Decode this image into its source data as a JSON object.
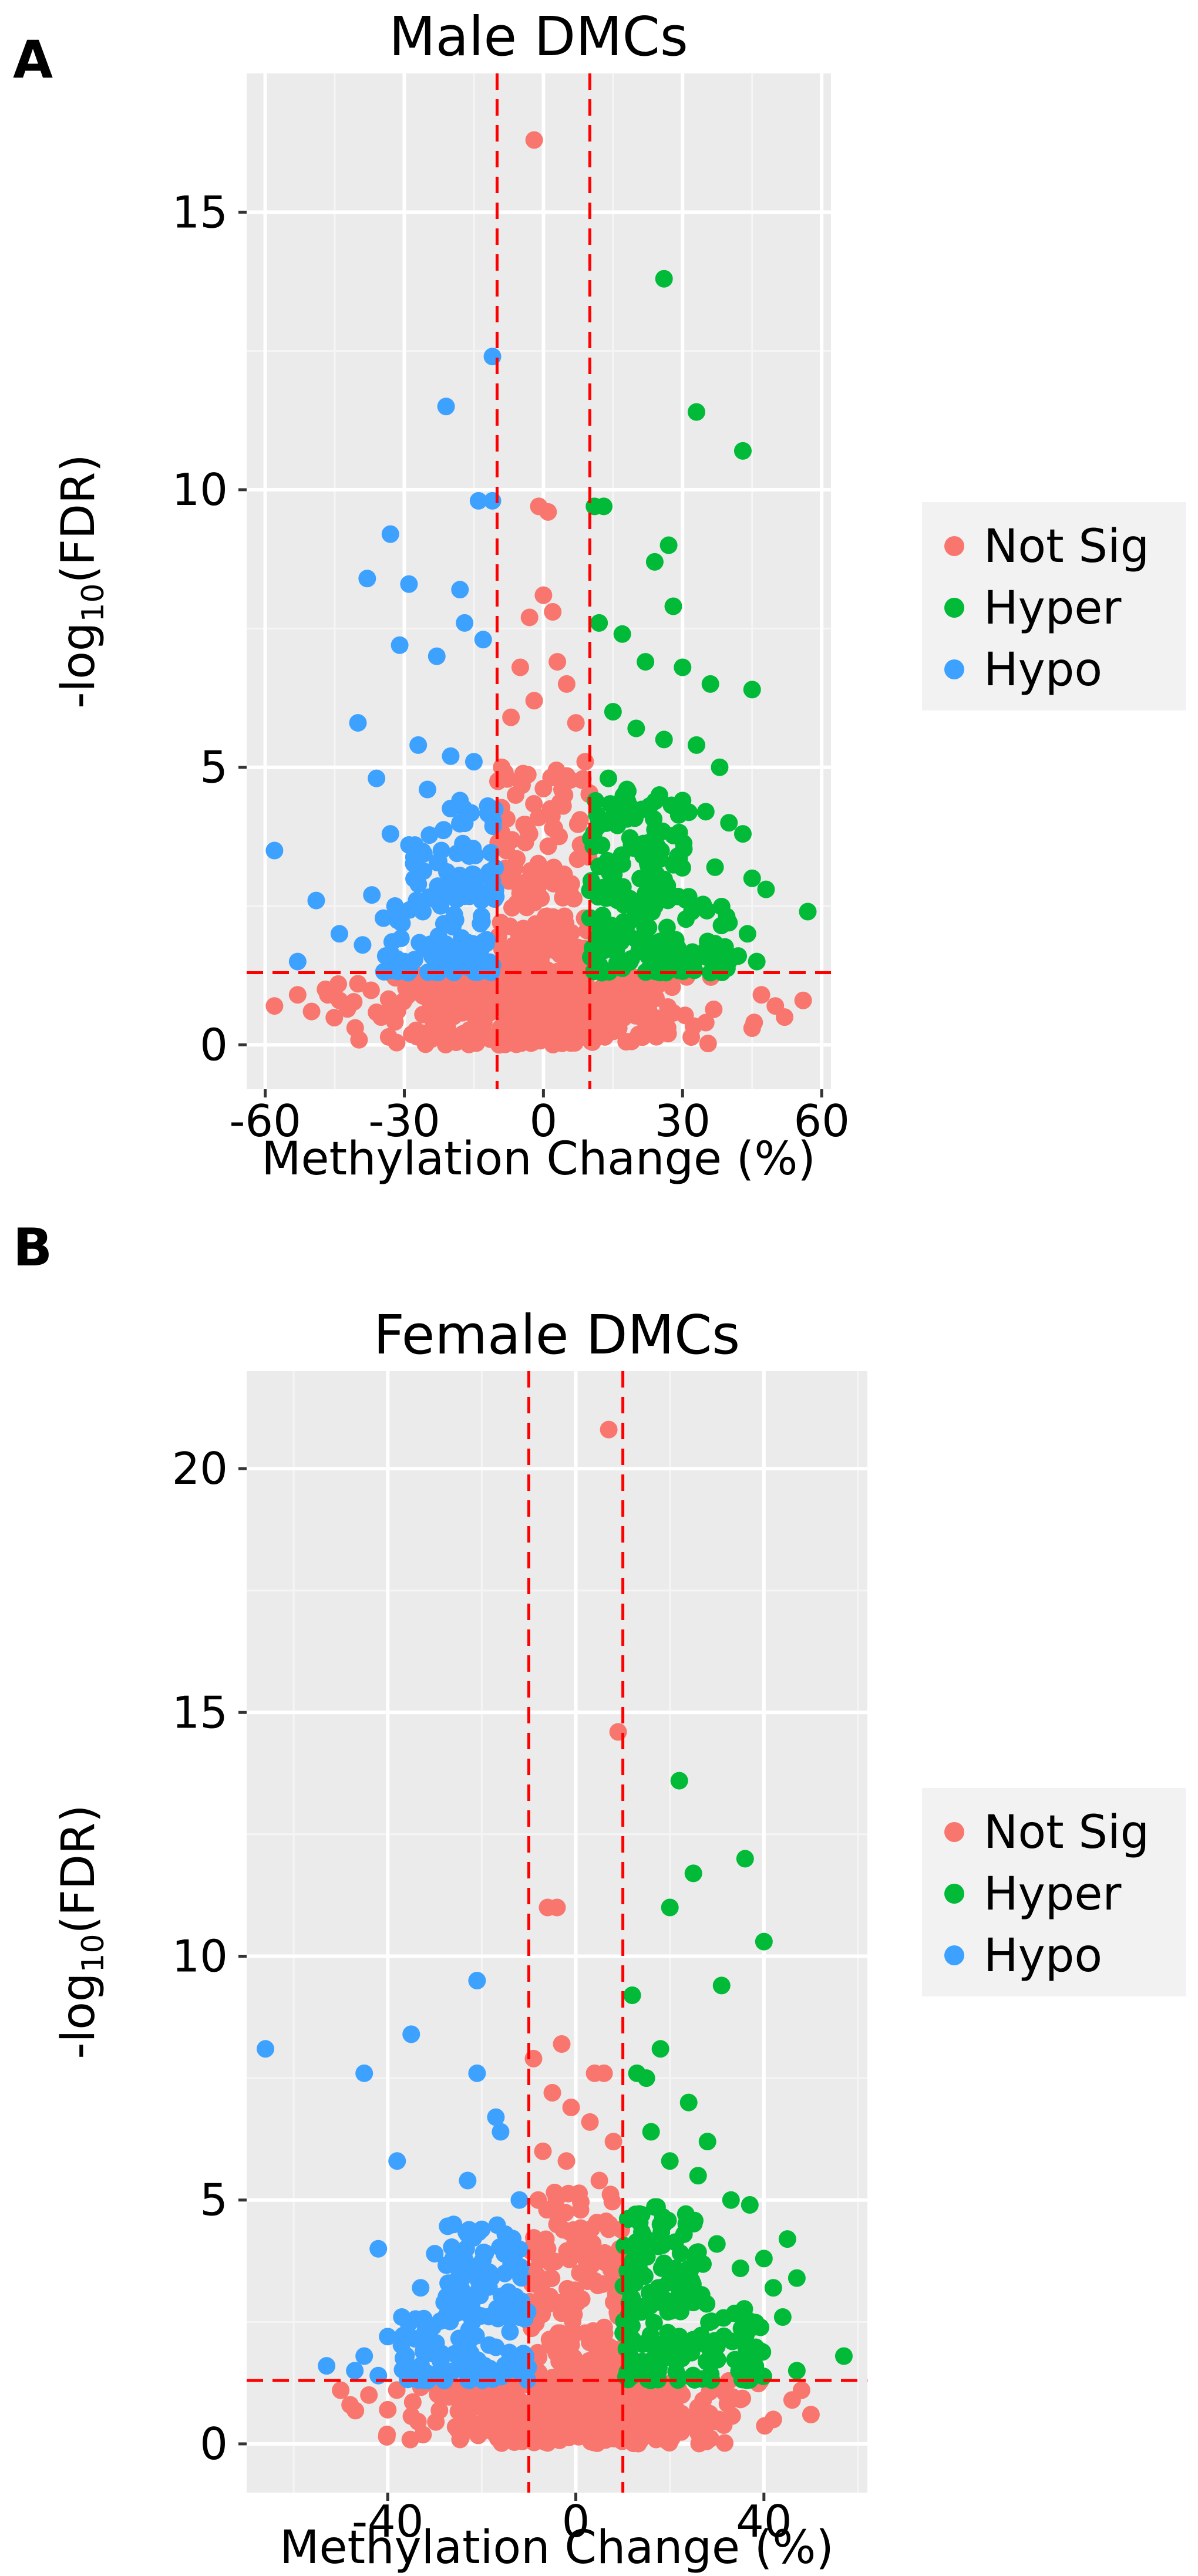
{
  "panels": [
    {
      "letter": "A"
    },
    {
      "letter": "B"
    }
  ],
  "chart_data": [
    {
      "type": "scatter",
      "title": "Male DMCs",
      "xlabel": "Methylation Change (%)",
      "ylabel": "-log10(FDR)",
      "ylabel_parts": {
        "pre": "-log",
        "sub": "10",
        "post": "(FDR)"
      },
      "xlim": [
        -64,
        62
      ],
      "ylim": [
        -0.8,
        17.5
      ],
      "xticks": [
        -60,
        -30,
        0,
        30,
        60
      ],
      "xtick_labels": [
        "-60",
        "-30",
        "0",
        "30",
        "60"
      ],
      "yticks": [
        0,
        5,
        10,
        15
      ],
      "ytick_labels": [
        "0",
        "5",
        "10",
        "15"
      ],
      "thresholds": {
        "x": [
          -10,
          10
        ],
        "y": 1.3
      },
      "grid": true,
      "legend_position": "right",
      "legend": [
        {
          "label": "Not Sig",
          "color": "#F8766D"
        },
        {
          "label": "Hyper",
          "color": "#00BA38"
        },
        {
          "label": "Hypo",
          "color": "#3DA1FF"
        }
      ],
      "series": [
        {
          "name": "Not Sig",
          "color": "#F8766D",
          "points": [
            [
              -2,
              16.3
            ],
            [
              -1,
              9.7
            ],
            [
              1,
              9.6
            ],
            [
              0,
              8.1
            ],
            [
              -3,
              7.7
            ],
            [
              2,
              7.8
            ],
            [
              -5,
              6.8
            ],
            [
              3,
              6.9
            ],
            [
              -2,
              6.2
            ],
            [
              5,
              6.5
            ],
            [
              -7,
              5.9
            ],
            [
              7,
              5.8
            ],
            [
              -9,
              5.0
            ],
            [
              9,
              5.1
            ],
            [
              -6,
              4.5
            ],
            [
              4,
              4.6
            ],
            [
              -3,
              3.8
            ],
            [
              2,
              3.9
            ],
            [
              -8,
              3.5
            ],
            [
              8,
              3.6
            ],
            [
              -1,
              3.2
            ],
            [
              1,
              3.1
            ],
            [
              -5,
              2.8
            ],
            [
              6,
              2.9
            ],
            [
              -58,
              0.7
            ],
            [
              -53,
              0.9
            ],
            [
              -50,
              0.6
            ],
            [
              -47,
              1.0
            ],
            [
              -44,
              0.8
            ],
            [
              -40,
              1.1
            ],
            [
              47,
              0.9
            ],
            [
              50,
              0.7
            ],
            [
              52,
              0.5
            ],
            [
              56,
              0.8
            ],
            [
              45,
              0.3
            ],
            [
              -35,
              0.5
            ],
            [
              35,
              0.4
            ]
          ],
          "bands": [
            {
              "x0": -10,
              "x1": 10,
              "y0": 1.3,
              "y1": 5.0
            }
          ]
        },
        {
          "name": "Hyper",
          "color": "#00BA38",
          "points": [
            [
              26,
              13.8
            ],
            [
              33,
              11.4
            ],
            [
              43,
              10.7
            ],
            [
              11,
              9.7
            ],
            [
              13,
              9.7
            ],
            [
              27,
              9.0
            ],
            [
              24,
              8.7
            ],
            [
              28,
              7.9
            ],
            [
              12,
              7.6
            ],
            [
              17,
              7.4
            ],
            [
              22,
              6.9
            ],
            [
              30,
              6.8
            ],
            [
              36,
              6.5
            ],
            [
              45,
              6.4
            ],
            [
              15,
              6.0
            ],
            [
              20,
              5.7
            ],
            [
              26,
              5.5
            ],
            [
              33,
              5.4
            ],
            [
              38,
              5.0
            ],
            [
              14,
              4.8
            ],
            [
              18,
              4.6
            ],
            [
              25,
              4.5
            ],
            [
              30,
              4.4
            ],
            [
              35,
              4.2
            ],
            [
              40,
              4.0
            ],
            [
              43,
              3.8
            ],
            [
              19,
              3.6
            ],
            [
              22,
              3.5
            ],
            [
              29,
              3.4
            ],
            [
              37,
              3.2
            ],
            [
              45,
              3.0
            ],
            [
              48,
              2.8
            ],
            [
              16,
              2.6
            ],
            [
              24,
              2.5
            ],
            [
              32,
              2.4
            ],
            [
              57,
              2.4
            ],
            [
              40,
              2.2
            ],
            [
              44,
              2.0
            ],
            [
              13,
              2.0
            ],
            [
              20,
              1.9
            ],
            [
              27,
              1.8
            ],
            [
              35,
              1.7
            ],
            [
              42,
              1.6
            ],
            [
              46,
              1.5
            ]
          ],
          "bands": [
            {
              "x0": 10,
              "x1": 40,
              "y0": 1.3,
              "y1": 2.6
            },
            {
              "x0": 10,
              "x1": 32,
              "y0": 2.6,
              "y1": 4.6
            }
          ]
        },
        {
          "name": "Hypo",
          "color": "#3DA1FF",
          "points": [
            [
              -11,
              12.4
            ],
            [
              -21,
              11.5
            ],
            [
              -11,
              9.8
            ],
            [
              -14,
              9.8
            ],
            [
              -33,
              9.2
            ],
            [
              -38,
              8.4
            ],
            [
              -29,
              8.3
            ],
            [
              -18,
              8.2
            ],
            [
              -17,
              7.6
            ],
            [
              -13,
              7.3
            ],
            [
              -23,
              7.0
            ],
            [
              -31,
              7.2
            ],
            [
              -40,
              5.8
            ],
            [
              -27,
              5.4
            ],
            [
              -20,
              5.2
            ],
            [
              -15,
              5.1
            ],
            [
              -36,
              4.8
            ],
            [
              -25,
              4.6
            ],
            [
              -18,
              4.4
            ],
            [
              -12,
              4.3
            ],
            [
              -33,
              3.8
            ],
            [
              -29,
              3.6
            ],
            [
              -22,
              3.5
            ],
            [
              -16,
              3.4
            ],
            [
              -58,
              3.5
            ],
            [
              -49,
              2.6
            ],
            [
              -37,
              2.7
            ],
            [
              -32,
              2.5
            ],
            [
              -26,
              2.4
            ],
            [
              -53,
              1.5
            ],
            [
              -44,
              2.0
            ],
            [
              -39,
              1.8
            ],
            [
              -34,
              1.6
            ],
            [
              -30,
              1.5
            ]
          ],
          "bands": [
            {
              "x0": -35,
              "x1": -10,
              "y0": 1.3,
              "y1": 2.6
            },
            {
              "x0": -28,
              "x1": -10,
              "y0": 2.6,
              "y1": 4.3
            }
          ]
        }
      ]
    },
    {
      "type": "scatter",
      "title": "Female DMCs",
      "xlabel": "Methylation Change (%)",
      "ylabel": "-log10(FDR)",
      "ylabel_parts": {
        "pre": "-log",
        "sub": "10",
        "post": "(FDR)"
      },
      "xlim": [
        -70,
        62
      ],
      "ylim": [
        -1.0,
        22
      ],
      "xticks": [
        -40,
        0,
        40
      ],
      "xtick_labels": [
        "-40",
        "0",
        "40"
      ],
      "yticks": [
        0,
        5,
        10,
        15,
        20
      ],
      "ytick_labels": [
        "0",
        "5",
        "10",
        "15",
        "20"
      ],
      "thresholds": {
        "x": [
          -10,
          10
        ],
        "y": 1.3
      },
      "grid": true,
      "legend_position": "right",
      "legend": [
        {
          "label": "Not Sig",
          "color": "#F8766D"
        },
        {
          "label": "Hyper",
          "color": "#00BA38"
        },
        {
          "label": "Hypo",
          "color": "#3DA1FF"
        }
      ],
      "series": [
        {
          "name": "Not Sig",
          "color": "#F8766D",
          "points": [
            [
              7,
              20.8
            ],
            [
              9,
              14.6
            ],
            [
              -6,
              11.0
            ],
            [
              -4,
              11.0
            ],
            [
              -3,
              8.2
            ],
            [
              -9,
              7.9
            ],
            [
              4,
              7.6
            ],
            [
              6,
              7.6
            ],
            [
              -5,
              7.2
            ],
            [
              -1,
              6.9
            ],
            [
              3,
              6.6
            ],
            [
              -7,
              6.0
            ],
            [
              8,
              6.2
            ],
            [
              -2,
              5.8
            ],
            [
              5,
              5.4
            ],
            [
              -8,
              5.0
            ],
            [
              1,
              4.8
            ],
            [
              -4,
              4.5
            ],
            [
              7,
              4.4
            ],
            [
              -6,
              4.0
            ],
            [
              2,
              3.8
            ],
            [
              -50,
              1.1
            ],
            [
              -48,
              0.8
            ],
            [
              -44,
              1.0
            ],
            [
              -40,
              0.7
            ],
            [
              48,
              1.1
            ],
            [
              50,
              0.6
            ],
            [
              46,
              0.9
            ],
            [
              42,
              0.5
            ]
          ],
          "bands": [
            {
              "x0": -10,
              "x1": 10,
              "y0": 1.3,
              "y1": 5.2
            }
          ]
        },
        {
          "name": "Hyper",
          "color": "#00BA38",
          "points": [
            [
              22,
              13.6
            ],
            [
              36,
              12.0
            ],
            [
              25,
              11.7
            ],
            [
              40,
              10.3
            ],
            [
              20,
              11.0
            ],
            [
              31,
              9.4
            ],
            [
              12,
              9.2
            ],
            [
              18,
              8.1
            ],
            [
              15,
              7.5
            ],
            [
              13,
              7.6
            ],
            [
              24,
              7.0
            ],
            [
              28,
              6.2
            ],
            [
              16,
              6.4
            ],
            [
              20,
              5.8
            ],
            [
              26,
              5.5
            ],
            [
              33,
              5.0
            ],
            [
              37,
              4.9
            ],
            [
              14,
              4.7
            ],
            [
              18,
              4.5
            ],
            [
              23,
              4.3
            ],
            [
              30,
              4.1
            ],
            [
              45,
              4.2
            ],
            [
              40,
              3.8
            ],
            [
              47,
              3.4
            ],
            [
              35,
              3.6
            ],
            [
              42,
              3.2
            ],
            [
              17,
              3.0
            ],
            [
              25,
              2.9
            ],
            [
              44,
              2.6
            ],
            [
              57,
              1.8
            ],
            [
              47,
              1.5
            ],
            [
              38,
              2.4
            ],
            [
              22,
              2.2
            ],
            [
              30,
              2.0
            ]
          ],
          "bands": [
            {
              "x0": 10,
              "x1": 40,
              "y0": 1.3,
              "y1": 2.8
            },
            {
              "x0": 10,
              "x1": 28,
              "y0": 2.8,
              "y1": 5.0
            }
          ]
        },
        {
          "name": "Hypo",
          "color": "#3DA1FF",
          "points": [
            [
              -21,
              9.5
            ],
            [
              -35,
              8.4
            ],
            [
              -66,
              8.1
            ],
            [
              -45,
              7.6
            ],
            [
              -21,
              7.6
            ],
            [
              -17,
              6.7
            ],
            [
              -16,
              6.4
            ],
            [
              -23,
              5.4
            ],
            [
              -38,
              5.8
            ],
            [
              -12,
              5.0
            ],
            [
              -26,
              4.5
            ],
            [
              -20,
              4.4
            ],
            [
              -15,
              4.3
            ],
            [
              -30,
              3.9
            ],
            [
              -42,
              4.0
            ],
            [
              -25,
              3.6
            ],
            [
              -18,
              3.4
            ],
            [
              -33,
              3.2
            ],
            [
              -28,
              2.9
            ],
            [
              -37,
              2.6
            ],
            [
              -22,
              2.5
            ],
            [
              -14,
              2.3
            ],
            [
              -40,
              2.2
            ],
            [
              -31,
              2.0
            ],
            [
              -53,
              1.6
            ],
            [
              -47,
              1.5
            ],
            [
              -45,
              1.8
            ],
            [
              -42,
              1.4
            ]
          ],
          "bands": [
            {
              "x0": -38,
              "x1": -10,
              "y0": 1.3,
              "y1": 2.6
            },
            {
              "x0": -28,
              "x1": -10,
              "y0": 2.6,
              "y1": 4.5
            }
          ]
        }
      ]
    }
  ]
}
